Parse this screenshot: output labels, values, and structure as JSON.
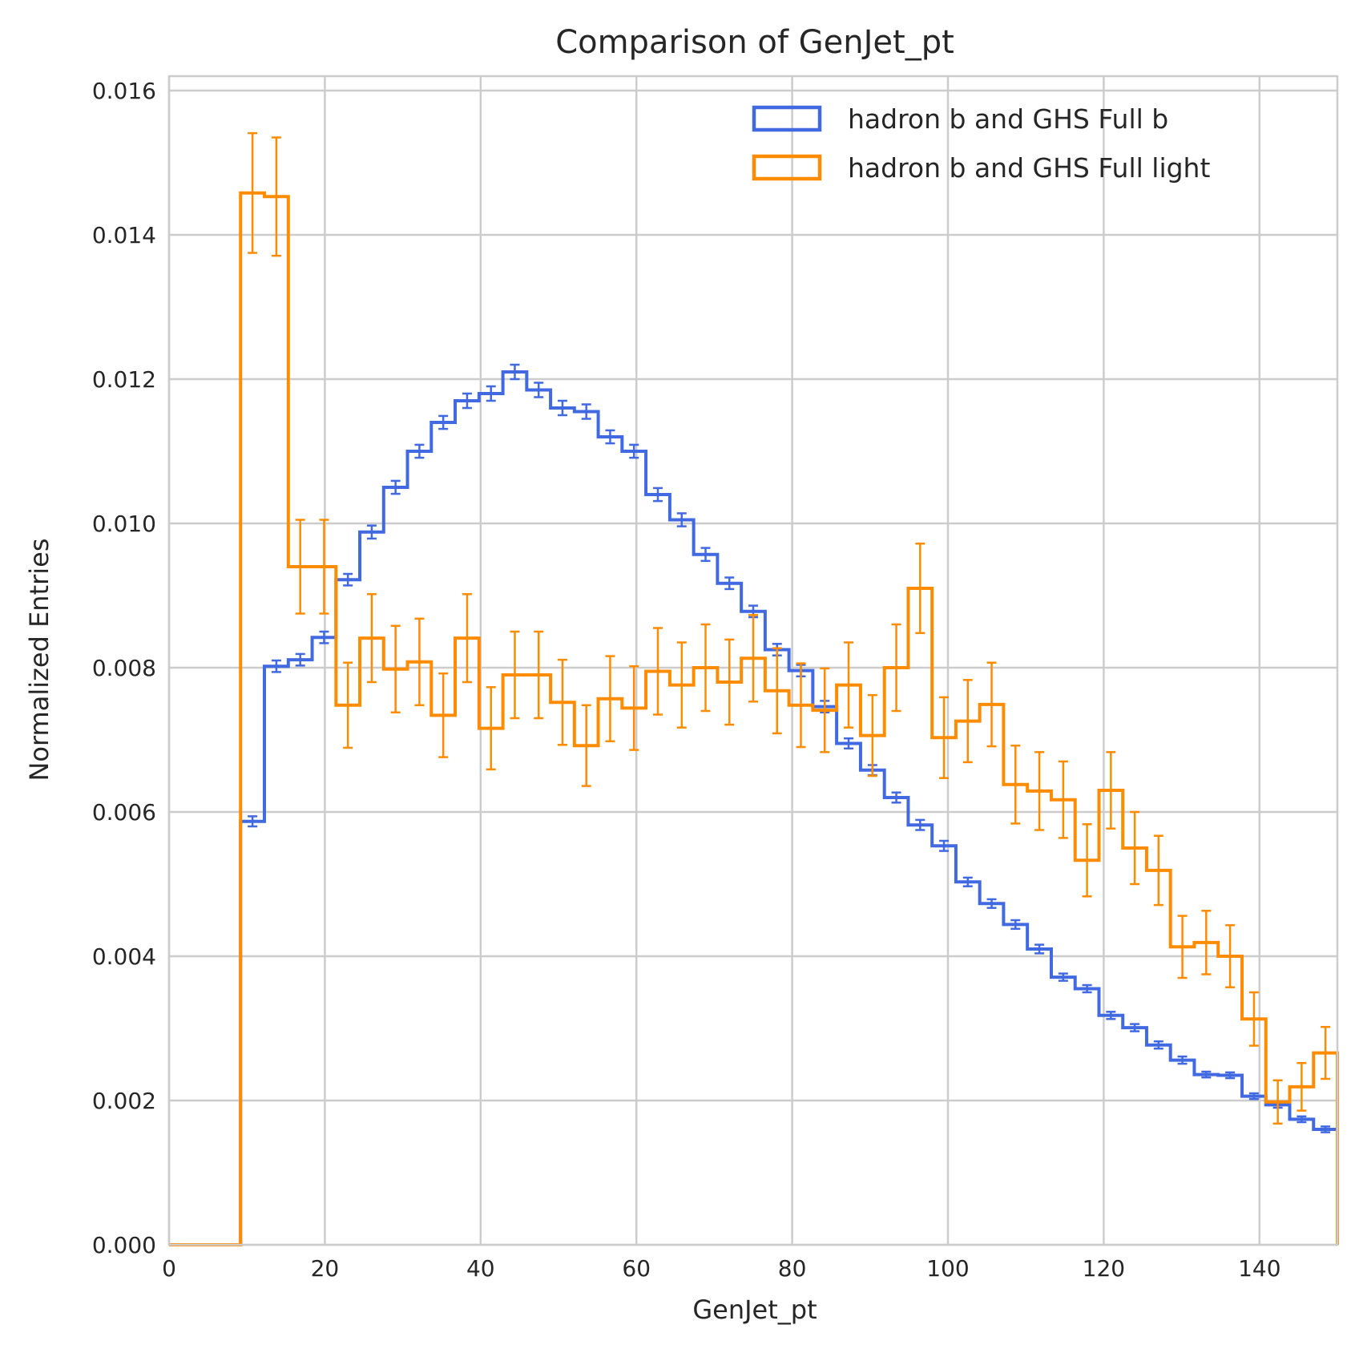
{
  "chart_data": {
    "type": "histogram",
    "title": "Comparison of GenJet_pt",
    "xlabel": "GenJet_pt",
    "ylabel": "Normalized Entries",
    "xlim": [
      0,
      150
    ],
    "ylim": [
      0,
      0.0162
    ],
    "xticks": [
      0,
      20,
      40,
      60,
      80,
      100,
      120,
      140
    ],
    "yticks": [
      0.0,
      0.002,
      0.004,
      0.006,
      0.008,
      0.01,
      0.012,
      0.014,
      0.016
    ],
    "ytick_labels": [
      "0.000",
      "0.002",
      "0.004",
      "0.006",
      "0.008",
      "0.010",
      "0.012",
      "0.014",
      "0.016"
    ],
    "xtick_labels": [
      "0",
      "20",
      "40",
      "60",
      "80",
      "100",
      "120",
      "140"
    ],
    "grid": true,
    "legend_position": "top-right",
    "bin_edges": [
      0,
      3.06,
      6.12,
      9.18,
      12.24,
      15.31,
      18.37,
      21.43,
      24.49,
      27.55,
      30.61,
      33.67,
      36.73,
      39.8,
      42.86,
      45.92,
      48.98,
      52.04,
      55.1,
      58.16,
      61.22,
      64.29,
      67.35,
      70.41,
      73.47,
      76.53,
      79.59,
      82.65,
      85.71,
      88.78,
      91.84,
      94.9,
      97.96,
      101.02,
      104.08,
      107.14,
      110.2,
      113.27,
      116.33,
      119.39,
      122.45,
      125.51,
      128.57,
      131.63,
      134.69,
      137.76,
      140.82,
      143.88,
      146.94,
      150
    ],
    "series": [
      {
        "name": "hadron b and GHS Full b",
        "color": "#4169E1",
        "values": [
          0,
          0,
          0,
          0.00587,
          0.00802,
          0.00811,
          0.00842,
          0.00922,
          0.00988,
          0.0105,
          0.011,
          0.0114,
          0.0117,
          0.0118,
          0.0121,
          0.01185,
          0.0116,
          0.01155,
          0.0112,
          0.011,
          0.0104,
          0.01005,
          0.00957,
          0.00917,
          0.00878,
          0.00825,
          0.00796,
          0.00746,
          0.00695,
          0.00658,
          0.0062,
          0.00582,
          0.00553,
          0.00503,
          0.00473,
          0.00444,
          0.0041,
          0.00371,
          0.00355,
          0.00318,
          0.00301,
          0.00277,
          0.00256,
          0.00236,
          0.00235,
          0.00206,
          0.00194,
          0.00174,
          0.0016
        ],
        "errors": [
          0,
          0,
          0,
          7e-05,
          8e-05,
          8e-05,
          8e-05,
          8e-05,
          9e-05,
          9e-05,
          9e-05,
          9e-05,
          0.0001,
          0.0001,
          0.0001,
          0.0001,
          0.0001,
          0.0001,
          9e-05,
          9e-05,
          9e-05,
          9e-05,
          9e-05,
          8e-05,
          8e-05,
          8e-05,
          8e-05,
          8e-05,
          7e-05,
          7e-05,
          7e-05,
          7e-05,
          7e-05,
          6e-05,
          6e-05,
          6e-05,
          6e-05,
          5e-05,
          5e-05,
          5e-05,
          5e-05,
          5e-05,
          5e-05,
          4e-05,
          4e-05,
          4e-05,
          4e-05,
          4e-05,
          4e-05
        ]
      },
      {
        "name": "hadron b and GHS Full light",
        "color": "#FF8C00",
        "values": [
          0,
          0,
          0,
          0.01458,
          0.01453,
          0.0094,
          0.0094,
          0.00748,
          0.00841,
          0.00798,
          0.00808,
          0.00734,
          0.00841,
          0.00716,
          0.0079,
          0.0079,
          0.00752,
          0.00692,
          0.00757,
          0.00744,
          0.00795,
          0.00776,
          0.008,
          0.0078,
          0.00813,
          0.00768,
          0.00748,
          0.00741,
          0.00776,
          0.00706,
          0.008,
          0.0091,
          0.00703,
          0.00726,
          0.00749,
          0.00638,
          0.00629,
          0.00617,
          0.00533,
          0.0063,
          0.0055,
          0.00519,
          0.00413,
          0.00419,
          0.004,
          0.00313,
          0.00198,
          0.00219,
          0.00266
        ],
        "errors": [
          0,
          0,
          0,
          0.00083,
          0.00082,
          0.00065,
          0.00065,
          0.00059,
          0.00061,
          0.0006,
          0.0006,
          0.00058,
          0.00061,
          0.00057,
          0.0006,
          0.0006,
          0.00059,
          0.00056,
          0.00059,
          0.00058,
          0.0006,
          0.00059,
          0.0006,
          0.00059,
          0.0006,
          0.00059,
          0.00058,
          0.00058,
          0.00059,
          0.00056,
          0.0006,
          0.00062,
          0.00056,
          0.00057,
          0.00058,
          0.00054,
          0.00054,
          0.00053,
          0.0005,
          0.00053,
          0.0005,
          0.00048,
          0.00043,
          0.00044,
          0.00043,
          0.00037,
          0.0003,
          0.00033,
          0.00036
        ]
      }
    ]
  }
}
